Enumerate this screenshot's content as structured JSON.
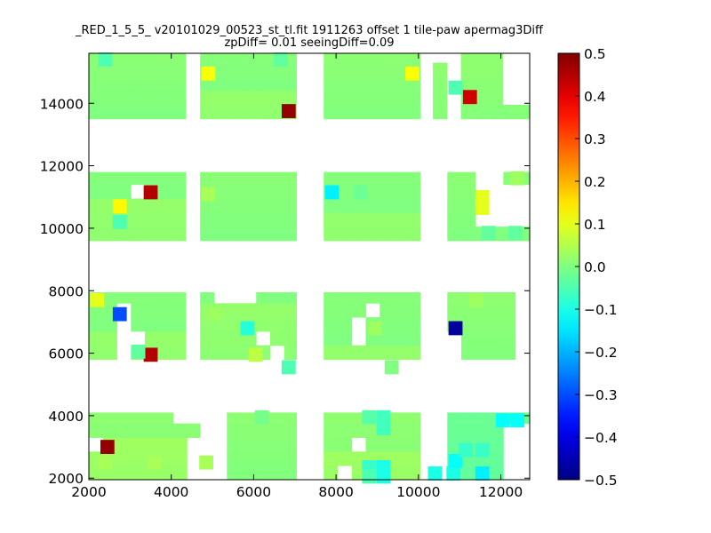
{
  "chart_data": {
    "type": "heatmap",
    "title": "_RED_1_5_5_ v20101029_00523_st_tl.fit 1911263 offset 1 tile-paw apermag3Diff",
    "subtitle": "zpDiff= 0.01 seeingDiff=0.09",
    "xlabel": "",
    "ylabel": "",
    "xlim": [
      2000,
      12700
    ],
    "ylim": [
      1950,
      15600
    ],
    "x_ticks": [
      2000,
      4000,
      6000,
      8000,
      10000,
      12000
    ],
    "y_ticks": [
      2000,
      4000,
      6000,
      8000,
      10000,
      12000,
      14000
    ],
    "cell_size": [
      340,
      450
    ],
    "grid": false,
    "colorbar": {
      "colormap": "jet",
      "min": -0.5,
      "max": 0.5,
      "ticks": [
        0.5,
        0.4,
        0.3,
        0.2,
        0.1,
        0.0,
        -0.1,
        -0.2,
        -0.3,
        -0.4,
        -0.5
      ],
      "tick_labels": [
        "0.5",
        "0.4",
        "0.3",
        "0.2",
        "0.1",
        "0.0",
        "−0.1",
        "−0.2",
        "−0.3",
        "−0.4",
        "−0.5"
      ]
    },
    "base_value": 0.01,
    "blocks": [
      {
        "x0": 2000,
        "x1": 4350,
        "y0": 13500,
        "y1": 15600,
        "holes": [],
        "value": 0.01
      },
      {
        "x0": 4700,
        "x1": 7040,
        "y0": 13500,
        "y1": 15600,
        "holes": [],
        "value": 0.01
      },
      {
        "x0": 7700,
        "x1": 10040,
        "y0": 13500,
        "y1": 15600,
        "holes": [],
        "value": 0.01
      },
      {
        "x0": 10350,
        "x1": 12700,
        "y0": 13500,
        "y1": 15600,
        "holes": [
          [
            10350,
            10700,
            15150,
            15600
          ],
          [
            10700,
            10900,
            13500,
            15600
          ],
          [
            12100,
            12700,
            13950,
            15600
          ]
        ],
        "value": 0.01
      },
      {
        "x0": 2000,
        "x1": 4350,
        "y0": 9600,
        "y1": 11800,
        "holes": [
          [
            3000,
            3350,
            11000,
            11350
          ]
        ],
        "value": 0.01
      },
      {
        "x0": 4700,
        "x1": 7040,
        "y0": 9600,
        "y1": 11800,
        "holes": [],
        "value": 0.0
      },
      {
        "x0": 7700,
        "x1": 10040,
        "y0": 9600,
        "y1": 11800,
        "holes": [],
        "value": 0.01
      },
      {
        "x0": 10700,
        "x1": 12700,
        "y0": 9600,
        "y1": 11800,
        "holes": [
          [
            11500,
            12700,
            10050,
            11350
          ],
          [
            11500,
            12100,
            11350,
            11800
          ]
        ],
        "value": 0.01
      },
      {
        "x0": 2000,
        "x1": 4350,
        "y0": 5800,
        "y1": 7950,
        "holes": [
          [
            2700,
            3000,
            6250,
            7400
          ],
          [
            3000,
            3350,
            6250,
            6500
          ],
          [
            2000,
            2700,
            5800,
            5800
          ],
          [
            2700,
            3000,
            5800,
            6250
          ]
        ],
        "value": 0.01
      },
      {
        "x0": 4700,
        "x1": 7040,
        "y0": 5800,
        "y1": 7950,
        "holes": [
          [
            6000,
            6350,
            6250,
            6500
          ],
          [
            6350,
            6700,
            5800,
            6250
          ],
          [
            5000,
            5350,
            7600,
            7950
          ],
          [
            5350,
            5700,
            7600,
            7950
          ],
          [
            5700,
            6000,
            7600,
            7950
          ]
        ],
        "value": 0.01
      },
      {
        "x0": 7700,
        "x1": 10040,
        "y0": 5800,
        "y1": 7950,
        "holes": [
          [
            8400,
            8700,
            6250,
            7050
          ],
          [
            8700,
            9000,
            7050,
            7400
          ]
        ],
        "value": 0.01
      },
      {
        "x0": 10700,
        "x1": 12350,
        "y0": 5800,
        "y1": 7950,
        "holes": [
          [
            10700,
            11050,
            5800,
            6600
          ]
        ],
        "value": 0.01
      },
      {
        "x0": 2000,
        "x1": 4700,
        "y0": 1950,
        "y1": 4100,
        "holes": [
          [
            2000,
            2350,
            2750,
            3200
          ],
          [
            4000,
            4700,
            3600,
            4100
          ],
          [
            4350,
            4700,
            1950,
            3200
          ]
        ],
        "value": 0.02
      },
      {
        "x0": 5350,
        "x1": 7040,
        "y0": 1950,
        "y1": 4100,
        "holes": [],
        "value": 0.01
      },
      {
        "x0": 7700,
        "x1": 10040,
        "y0": 1950,
        "y1": 4100,
        "holes": [
          [
            8400,
            8700,
            2750,
            3200
          ],
          [
            8000,
            8400,
            1950,
            2350
          ]
        ],
        "value": 0.02
      },
      {
        "x0": 10700,
        "x1": 12700,
        "y0": 1950,
        "y1": 4100,
        "holes": [
          [
            12000,
            12700,
            1950,
            3600
          ]
        ],
        "value": -0.02
      }
    ],
    "cells": [
      {
        "x": 2400,
        "y": 15400,
        "value": -0.05
      },
      {
        "x": 4900,
        "y": 14950,
        "value": 0.12
      },
      {
        "x": 6650,
        "y": 15400,
        "value": -0.03
      },
      {
        "x": 9850,
        "y": 14950,
        "value": 0.12
      },
      {
        "x": 10900,
        "y": 14500,
        "value": -0.05
      },
      {
        "x": 11250,
        "y": 14200,
        "value": 0.42
      },
      {
        "x": 6850,
        "y": 13750,
        "value": 0.48
      },
      {
        "x": 3500,
        "y": 11150,
        "value": 0.45
      },
      {
        "x": 2750,
        "y": 10700,
        "value": 0.13
      },
      {
        "x": 2750,
        "y": 10200,
        "value": -0.05
      },
      {
        "x": 4900,
        "y": 11100,
        "value": 0.04
      },
      {
        "x": 7900,
        "y": 11150,
        "value": -0.14
      },
      {
        "x": 8600,
        "y": 11150,
        "value": -0.02
      },
      {
        "x": 11550,
        "y": 11000,
        "value": 0.1
      },
      {
        "x": 11550,
        "y": 10650,
        "value": 0.1
      },
      {
        "x": 12400,
        "y": 11600,
        "value": 0.03
      },
      {
        "x": 11700,
        "y": 9850,
        "value": -0.03
      },
      {
        "x": 12350,
        "y": 9850,
        "value": -0.03
      },
      {
        "x": 2200,
        "y": 7700,
        "value": 0.1
      },
      {
        "x": 2750,
        "y": 7250,
        "value": -0.3
      },
      {
        "x": 3500,
        "y": 5950,
        "value": 0.45
      },
      {
        "x": 3200,
        "y": 6050,
        "value": -0.03
      },
      {
        "x": 5050,
        "y": 7250,
        "value": 0.03
      },
      {
        "x": 5850,
        "y": 6800,
        "value": -0.09
      },
      {
        "x": 6050,
        "y": 5950,
        "value": 0.06
      },
      {
        "x": 6850,
        "y": 5550,
        "value": -0.05
      },
      {
        "x": 8950,
        "y": 6800,
        "value": 0.03
      },
      {
        "x": 9350,
        "y": 5550,
        "value": 0.0
      },
      {
        "x": 10900,
        "y": 6800,
        "value": -0.47
      },
      {
        "x": 11400,
        "y": 7700,
        "value": 0.03
      },
      {
        "x": 2450,
        "y": 3000,
        "value": 0.48
      },
      {
        "x": 2400,
        "y": 2500,
        "value": 0.04
      },
      {
        "x": 3600,
        "y": 2500,
        "value": 0.04
      },
      {
        "x": 4850,
        "y": 2500,
        "value": 0.04
      },
      {
        "x": 6200,
        "y": 3950,
        "value": -0.01
      },
      {
        "x": 8800,
        "y": 3950,
        "value": -0.04
      },
      {
        "x": 9150,
        "y": 3950,
        "value": -0.06
      },
      {
        "x": 9150,
        "y": 3600,
        "value": -0.06
      },
      {
        "x": 8800,
        "y": 2350,
        "value": -0.07
      },
      {
        "x": 9150,
        "y": 2350,
        "value": -0.1
      },
      {
        "x": 9150,
        "y": 2050,
        "value": -0.1
      },
      {
        "x": 8800,
        "y": 2050,
        "value": -0.05
      },
      {
        "x": 10400,
        "y": 2150,
        "value": -0.1
      },
      {
        "x": 10850,
        "y": 2150,
        "value": -0.1
      },
      {
        "x": 10900,
        "y": 2550,
        "value": -0.12
      },
      {
        "x": 11550,
        "y": 2150,
        "value": -0.14
      },
      {
        "x": 11150,
        "y": 2900,
        "value": -0.07
      },
      {
        "x": 11550,
        "y": 2900,
        "value": -0.07
      },
      {
        "x": 12050,
        "y": 3850,
        "value": -0.12
      },
      {
        "x": 12400,
        "y": 3850,
        "value": -0.12
      }
    ]
  }
}
